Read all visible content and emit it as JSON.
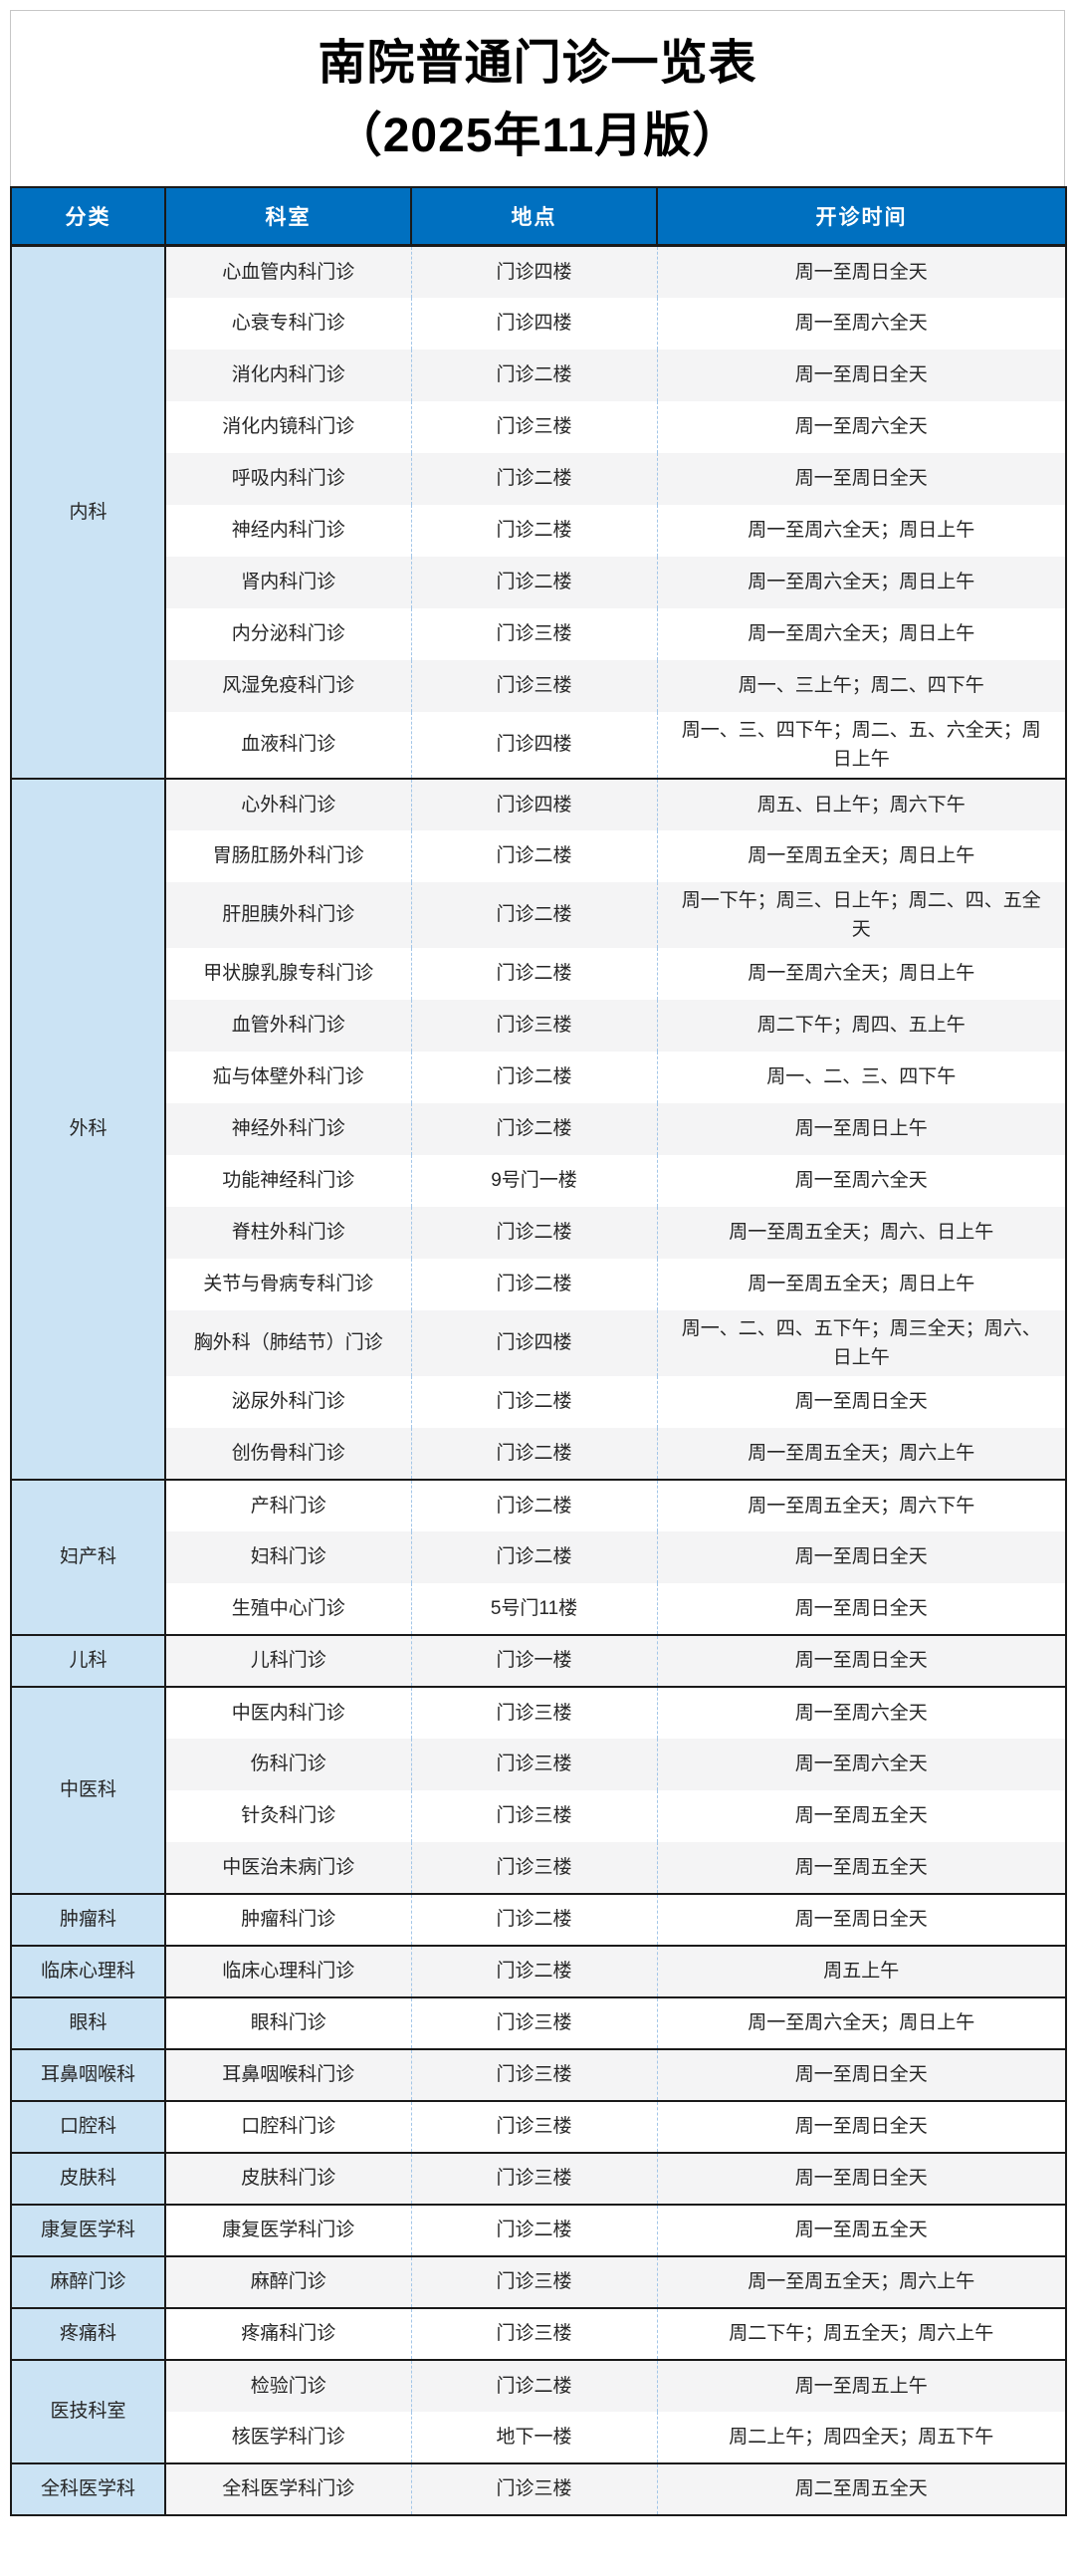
{
  "title": {
    "line1": "南院普通门诊一览表",
    "line2": "（2025年11月版）"
  },
  "columns": [
    "分类",
    "科室",
    "地点",
    "开诊时间"
  ],
  "colors": {
    "header_bg": "#0070C0",
    "header_text": "#FFFFFF",
    "category_bg": "#CBE3F4",
    "stripe_bg": "#F4F4F5",
    "dark_border": "#1A1A1A",
    "dashed_border": "#A3C6E8",
    "body_text": "#262626"
  },
  "sections": [
    {
      "category": "内科",
      "rows": [
        [
          "心血管内科门诊",
          "门诊四楼",
          "周一至周日全天"
        ],
        [
          "心衰专科门诊",
          "门诊四楼",
          "周一至周六全天"
        ],
        [
          "消化内科门诊",
          "门诊二楼",
          "周一至周日全天"
        ],
        [
          "消化内镜科门诊",
          "门诊三楼",
          "周一至周六全天"
        ],
        [
          "呼吸内科门诊",
          "门诊二楼",
          "周一至周日全天"
        ],
        [
          "神经内科门诊",
          "门诊二楼",
          "周一至周六全天；周日上午"
        ],
        [
          "肾内科门诊",
          "门诊二楼",
          "周一至周六全天；周日上午"
        ],
        [
          "内分泌科门诊",
          "门诊三楼",
          "周一至周六全天；周日上午"
        ],
        [
          "风湿免疫科门诊",
          "门诊三楼",
          "周一、三上午；周二、四下午"
        ],
        [
          "血液科门诊",
          "门诊四楼",
          "周一、三、四下午；周二、五、六全天；周日上午"
        ]
      ]
    },
    {
      "category": "外科",
      "rows": [
        [
          "心外科门诊",
          "门诊四楼",
          "周五、日上午；周六下午"
        ],
        [
          "胃肠肛肠外科门诊",
          "门诊二楼",
          "周一至周五全天；周日上午"
        ],
        [
          "肝胆胰外科门诊",
          "门诊二楼",
          "周一下午；周三、日上午；周二、四、五全天"
        ],
        [
          "甲状腺乳腺专科门诊",
          "门诊二楼",
          "周一至周六全天；周日上午"
        ],
        [
          "血管外科门诊",
          "门诊三楼",
          "周二下午；周四、五上午"
        ],
        [
          "疝与体壁外科门诊",
          "门诊二楼",
          "周一、二、三、四下午"
        ],
        [
          "神经外科门诊",
          "门诊二楼",
          "周一至周日上午"
        ],
        [
          "功能神经科门诊",
          "9号门一楼",
          "周一至周六全天"
        ],
        [
          "脊柱外科门诊",
          "门诊二楼",
          "周一至周五全天；周六、日上午"
        ],
        [
          "关节与骨病专科门诊",
          "门诊二楼",
          "周一至周五全天；周日上午"
        ],
        [
          "胸外科（肺结节）门诊",
          "门诊四楼",
          "周一、二、四、五下午；周三全天；周六、日上午"
        ],
        [
          "泌尿外科门诊",
          "门诊二楼",
          "周一至周日全天"
        ],
        [
          "创伤骨科门诊",
          "门诊二楼",
          "周一至周五全天；周六上午"
        ]
      ]
    },
    {
      "category": "妇产科",
      "rows": [
        [
          "产科门诊",
          "门诊二楼",
          "周一至周五全天；周六下午"
        ],
        [
          "妇科门诊",
          "门诊二楼",
          "周一至周日全天"
        ],
        [
          "生殖中心门诊",
          "5号门11楼",
          "周一至周日全天"
        ]
      ]
    },
    {
      "category": "儿科",
      "rows": [
        [
          "儿科门诊",
          "门诊一楼",
          "周一至周日全天"
        ]
      ]
    },
    {
      "category": "中医科",
      "rows": [
        [
          "中医内科门诊",
          "门诊三楼",
          "周一至周六全天"
        ],
        [
          "伤科门诊",
          "门诊三楼",
          "周一至周六全天"
        ],
        [
          "针灸科门诊",
          "门诊三楼",
          "周一至周五全天"
        ],
        [
          "中医治未病门诊",
          "门诊三楼",
          "周一至周五全天"
        ]
      ]
    },
    {
      "category": "肿瘤科",
      "rows": [
        [
          "肿瘤科门诊",
          "门诊二楼",
          "周一至周日全天"
        ]
      ]
    },
    {
      "category": "临床心理科",
      "rows": [
        [
          "临床心理科门诊",
          "门诊二楼",
          "周五上午"
        ]
      ]
    },
    {
      "category": "眼科",
      "rows": [
        [
          "眼科门诊",
          "门诊三楼",
          "周一至周六全天；周日上午"
        ]
      ]
    },
    {
      "category": "耳鼻咽喉科",
      "rows": [
        [
          "耳鼻咽喉科门诊",
          "门诊三楼",
          "周一至周日全天"
        ]
      ]
    },
    {
      "category": "口腔科",
      "rows": [
        [
          "口腔科门诊",
          "门诊三楼",
          "周一至周日全天"
        ]
      ]
    },
    {
      "category": "皮肤科",
      "rows": [
        [
          "皮肤科门诊",
          "门诊三楼",
          "周一至周日全天"
        ]
      ]
    },
    {
      "category": "康复医学科",
      "rows": [
        [
          "康复医学科门诊",
          "门诊二楼",
          "周一至周五全天"
        ]
      ]
    },
    {
      "category": "麻醉门诊",
      "rows": [
        [
          "麻醉门诊",
          "门诊三楼",
          "周一至周五全天；周六上午"
        ]
      ]
    },
    {
      "category": "疼痛科",
      "rows": [
        [
          "疼痛科门诊",
          "门诊三楼",
          "周二下午；周五全天；周六上午"
        ]
      ]
    },
    {
      "category": "医技科室",
      "rows": [
        [
          "检验门诊",
          "门诊二楼",
          "周一至周五上午"
        ],
        [
          "核医学科门诊",
          "地下一楼",
          "周二上午；周四全天；周五下午"
        ]
      ]
    },
    {
      "category": "全科医学科",
      "rows": [
        [
          "全科医学科门诊",
          "门诊三楼",
          "周二至周五全天"
        ]
      ]
    }
  ]
}
